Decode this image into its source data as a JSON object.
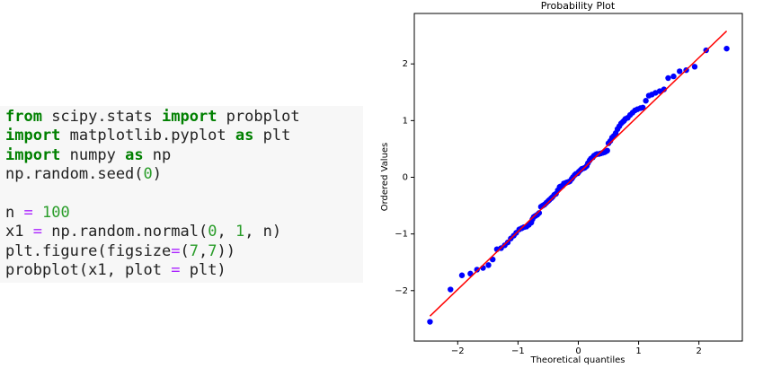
{
  "code": {
    "lines": [
      [
        "from",
        " scipy.stats ",
        "import",
        " probplot"
      ],
      [
        "import",
        " matplotlib.pyplot ",
        "as",
        " plt"
      ],
      [
        "import",
        " numpy ",
        "as",
        " np"
      ],
      [
        "np.random.seed(",
        "0",
        ")"
      ],
      [
        "n ",
        "=",
        " ",
        "100"
      ],
      [
        "x1 ",
        "=",
        " np.random.normal(",
        "0",
        ", ",
        "1",
        ", n)"
      ],
      [
        "plt.figure(figsize",
        "=",
        "(",
        "7",
        ",",
        "7",
        "))"
      ],
      [
        "probplot(x1, plot ",
        "=",
        " plt)"
      ]
    ]
  },
  "chart_data": {
    "type": "scatter",
    "title": "Probability Plot",
    "x_label": "Theoretical quantiles",
    "y_label": "Ordered Values",
    "color": "#0000ff",
    "line_color": "#ff0000",
    "x": [
      -2.46,
      -2.12,
      -1.93,
      -1.79,
      -1.68,
      -1.58,
      -1.49,
      -1.42,
      -1.35,
      -1.28,
      -1.22,
      -1.17,
      -1.12,
      -1.07,
      -1.03,
      -0.98,
      -0.94,
      -0.9,
      -0.86,
      -0.82,
      -0.78,
      -0.76,
      -0.74,
      -0.71,
      -0.68,
      -0.65,
      -0.62,
      -0.59,
      -0.56,
      -0.53,
      -0.5,
      -0.48,
      -0.45,
      -0.43,
      -0.4,
      -0.37,
      -0.34,
      -0.31,
      -0.29,
      -0.26,
      -0.24,
      -0.21,
      -0.19,
      -0.16,
      -0.14,
      -0.11,
      -0.09,
      -0.06,
      -0.04,
      -0.01,
      0.01,
      0.04,
      0.06,
      0.09,
      0.11,
      0.14,
      0.16,
      0.19,
      0.21,
      0.24,
      0.26,
      0.29,
      0.31,
      0.34,
      0.37,
      0.4,
      0.43,
      0.45,
      0.48,
      0.5,
      0.53,
      0.56,
      0.59,
      0.62,
      0.65,
      0.68,
      0.71,
      0.74,
      0.76,
      0.78,
      0.82,
      0.86,
      0.9,
      0.94,
      0.98,
      1.03,
      1.07,
      1.12,
      1.17,
      1.22,
      1.28,
      1.35,
      1.42,
      1.49,
      1.58,
      1.68,
      1.79,
      1.93,
      2.12,
      2.46
    ],
    "values": [
      -2.55,
      -1.98,
      -1.73,
      -1.7,
      -1.63,
      -1.6,
      -1.55,
      -1.45,
      -1.27,
      -1.25,
      -1.2,
      -1.15,
      -1.08,
      -1.03,
      -0.98,
      -0.92,
      -0.9,
      -0.88,
      -0.87,
      -0.84,
      -0.8,
      -0.74,
      -0.7,
      -0.68,
      -0.66,
      -0.63,
      -0.52,
      -0.5,
      -0.48,
      -0.45,
      -0.42,
      -0.4,
      -0.37,
      -0.35,
      -0.31,
      -0.29,
      -0.23,
      -0.17,
      -0.16,
      -0.15,
      -0.11,
      -0.1,
      -0.09,
      -0.08,
      -0.07,
      -0.03,
      0.0,
      0.04,
      0.06,
      0.07,
      0.1,
      0.13,
      0.15,
      0.16,
      0.17,
      0.2,
      0.25,
      0.3,
      0.33,
      0.35,
      0.38,
      0.4,
      0.41,
      0.41,
      0.42,
      0.43,
      0.44,
      0.45,
      0.47,
      0.6,
      0.64,
      0.7,
      0.73,
      0.78,
      0.85,
      0.9,
      0.95,
      0.98,
      1.0,
      1.03,
      1.05,
      1.1,
      1.14,
      1.18,
      1.2,
      1.22,
      1.23,
      1.35,
      1.44,
      1.46,
      1.49,
      1.52,
      1.55,
      1.75,
      1.78,
      1.87,
      1.89,
      1.95,
      2.24,
      2.27
    ],
    "fit_line": {
      "x": [
        -2.46,
        2.46
      ],
      "y": [
        -2.45,
        2.58
      ]
    },
    "xlim": [
      -2.72,
      2.72
    ],
    "ylim": [
      -2.89,
      2.89
    ],
    "xticks": [
      {
        "value": -2,
        "label": "−2"
      },
      {
        "value": -1,
        "label": "−1"
      },
      0,
      1,
      2
    ],
    "yticks": [
      {
        "value": -2,
        "label": "−2"
      },
      {
        "value": -1,
        "label": "−1"
      },
      0,
      1,
      2
    ]
  }
}
